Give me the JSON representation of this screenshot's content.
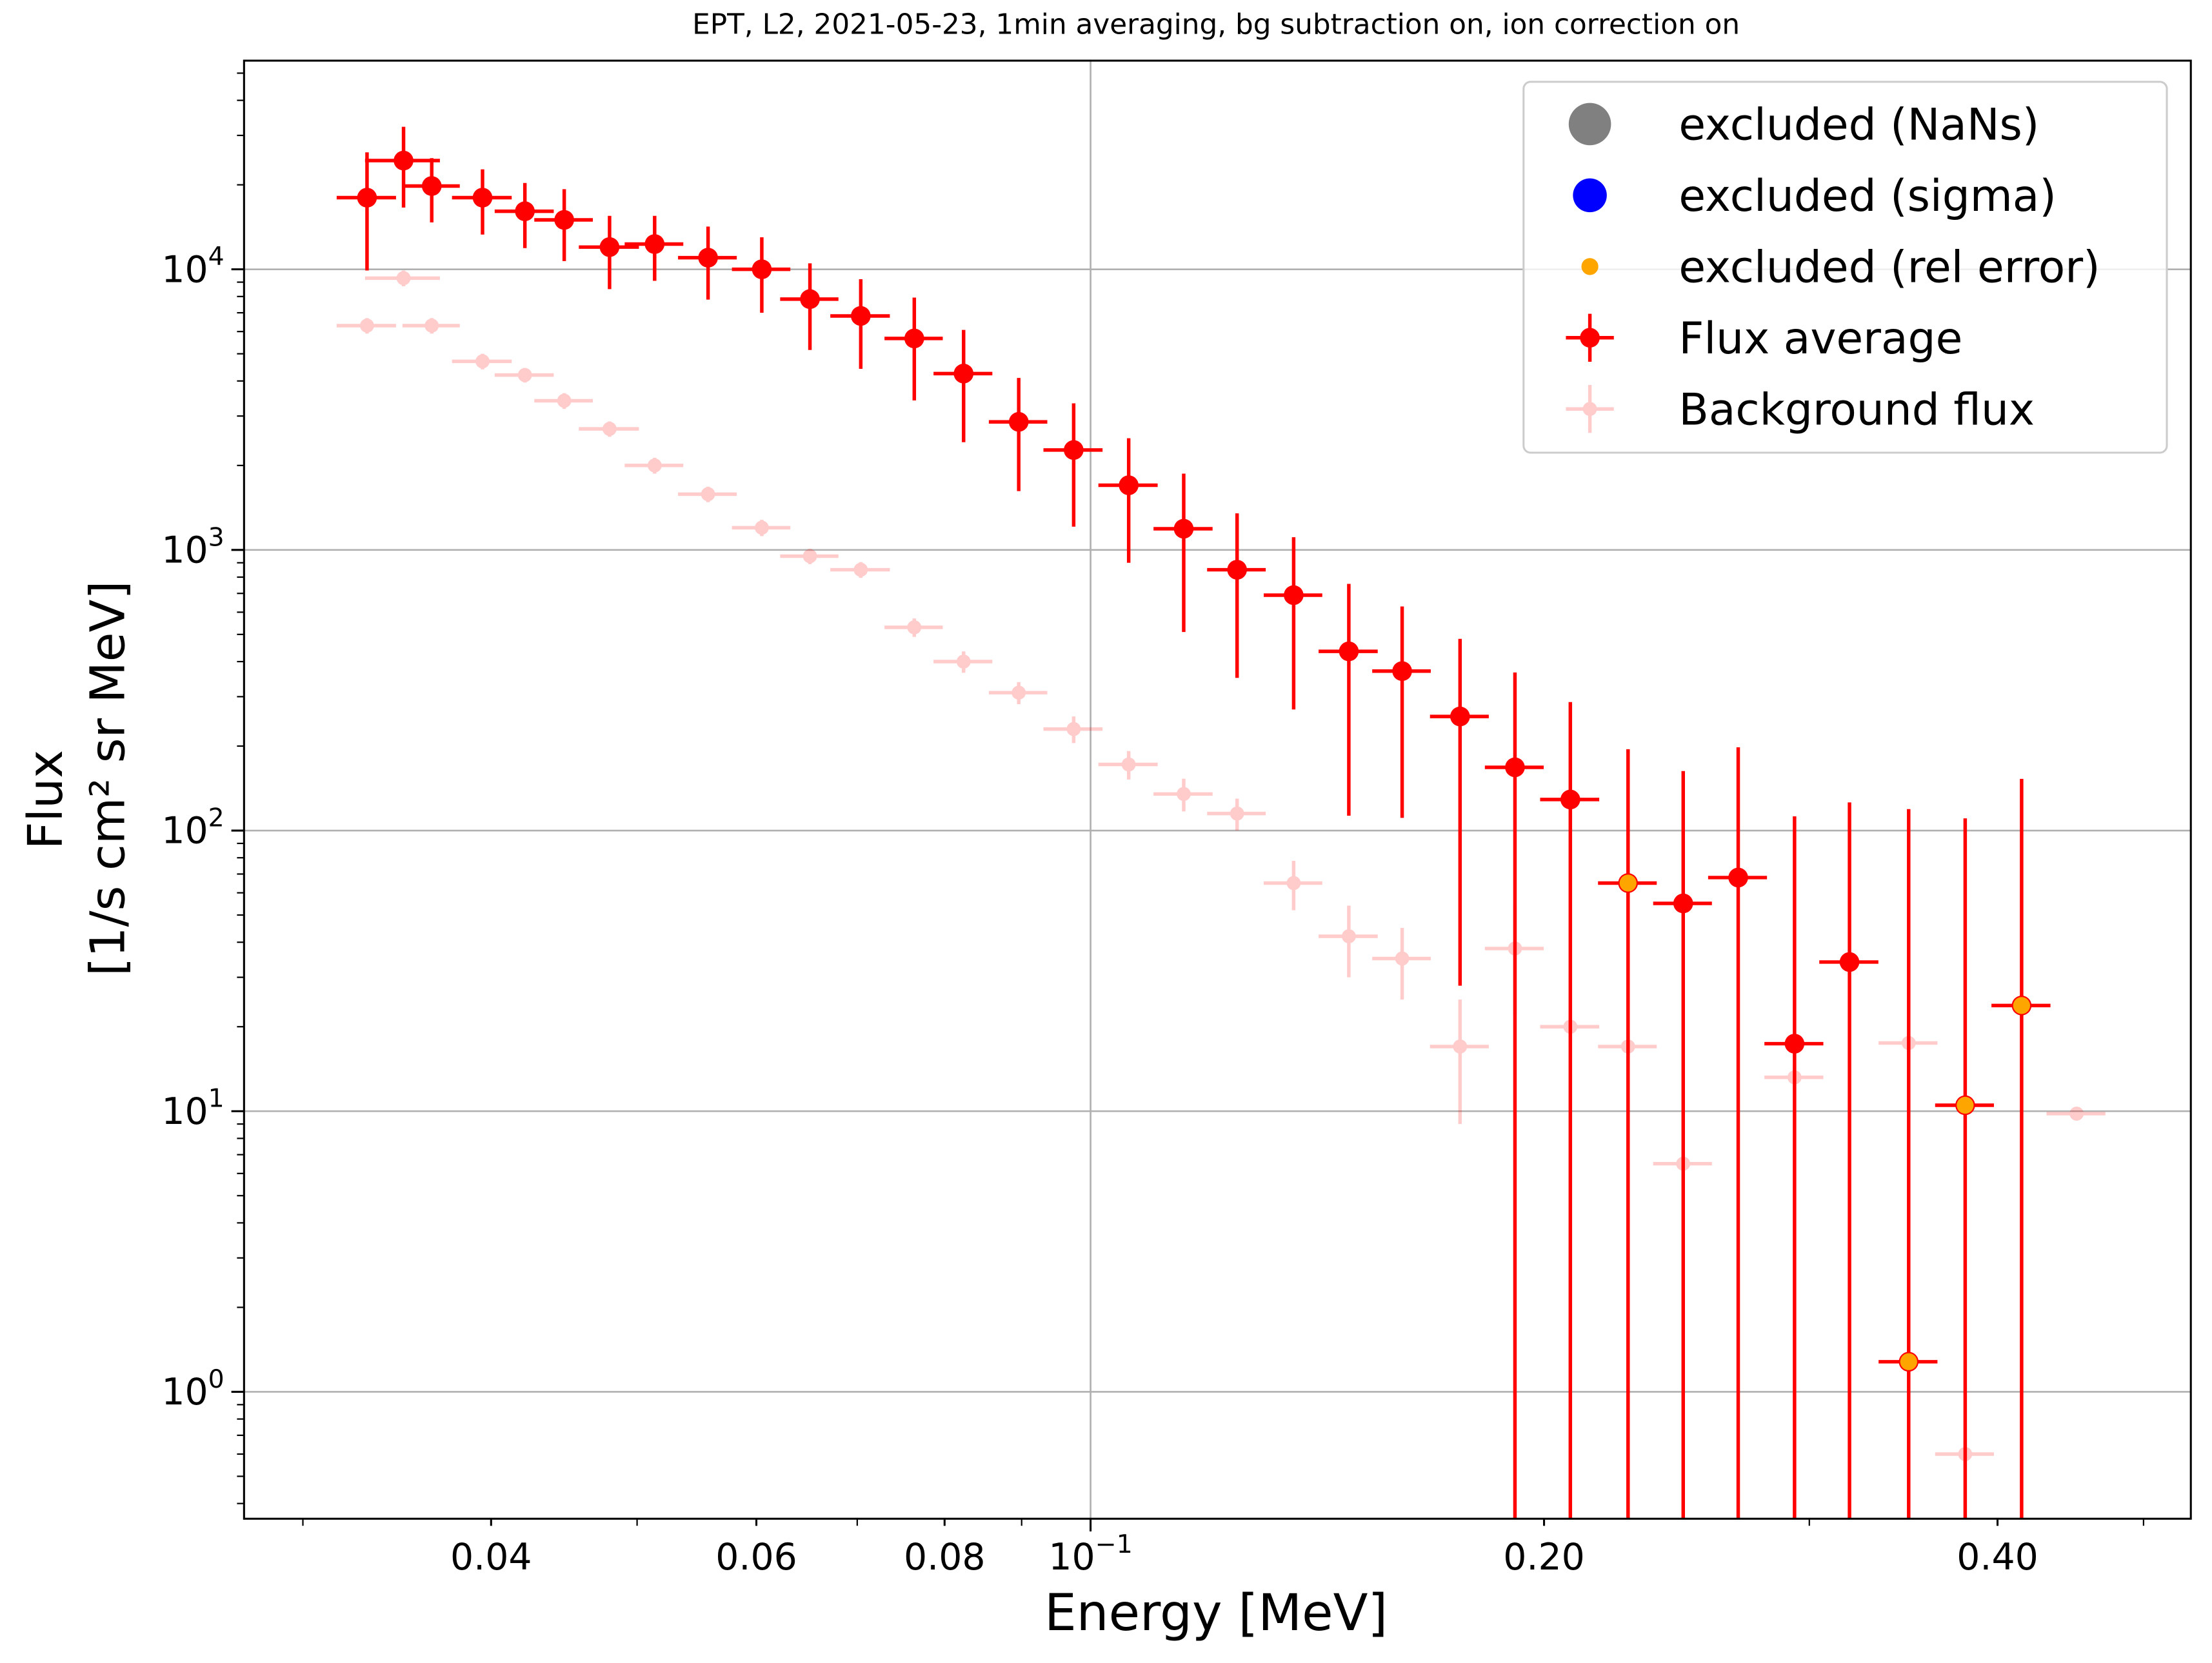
{
  "chart_data": {
    "type": "scatter",
    "title": "EPT, L2, 2021-05-23, 1min averaging, bg subtraction on, ion correction on",
    "x_label": "Energy [MeV]",
    "y_label": [
      "Flux",
      "[1/s cm² sr MeV]"
    ],
    "xscale": "log",
    "yscale": "log",
    "xlim": [
      0.02742,
      0.5375
    ],
    "ylim": [
      0.353,
      55400
    ],
    "xticks": [
      {
        "value": 0.04,
        "label": "0.04"
      },
      {
        "value": 0.06,
        "label": "0.06"
      },
      {
        "value": 0.08,
        "label": "0.08"
      },
      {
        "value": 0.1,
        "base": "10",
        "exponent": "−1"
      },
      {
        "value": 0.2,
        "label": "0.20"
      },
      {
        "value": 0.4,
        "label": "0.40"
      }
    ],
    "yticks": [
      {
        "value": 1,
        "base": "10",
        "exponent": "0"
      },
      {
        "value": 10,
        "base": "10",
        "exponent": "1"
      },
      {
        "value": 100,
        "base": "10",
        "exponent": "2"
      },
      {
        "value": 1000,
        "base": "10",
        "exponent": "3"
      },
      {
        "value": 10000,
        "base": "10",
        "exponent": "4"
      }
    ],
    "grid": true,
    "legend": "upper right",
    "series": [
      {
        "name": "excluded (NaNs)",
        "color": "#808080",
        "x": [],
        "values": []
      },
      {
        "name": "excluded (sigma)",
        "color": "#0000ff",
        "x": [],
        "values": []
      },
      {
        "name": "excluded (rel error)",
        "color": "#ffa500",
        "x": [
          0.2274,
          0.3492,
          0.3807,
          0.415
        ],
        "values": [
          65,
          1.28,
          10.5,
          23.8
        ]
      },
      {
        "name": "Flux average",
        "color": "#ff0000",
        "x": [
          0.03309,
          0.03499,
          0.03653,
          0.03948,
          0.04212,
          0.04473,
          0.04794,
          0.05136,
          0.05573,
          0.0605,
          0.06512,
          0.07038,
          0.07638,
          0.08236,
          0.0896,
          0.09745,
          0.106,
          0.1153,
          0.1251,
          0.1364,
          0.1484,
          0.161,
          0.1759,
          0.1913,
          0.2082,
          0.2274,
          0.2474,
          0.2691,
          0.2933,
          0.319,
          0.3492,
          0.3807,
          0.415
        ],
        "values": [
          18000,
          24400,
          19800,
          18000,
          16100,
          15000,
          12000,
          12300,
          11000,
          10000,
          7830,
          6820,
          5670,
          4250,
          2860,
          2270,
          1700,
          1190,
          850,
          690,
          435,
          370,
          255,
          168,
          129,
          65,
          55,
          68,
          17.4,
          34,
          1.28,
          10.5,
          23.8
        ],
        "errors": [
          8100,
          7800,
          5100,
          4700,
          4200,
          4300,
          3500,
          3200,
          3200,
          3000,
          2670,
          2400,
          2260,
          1830,
          1240,
          1060,
          800,
          680,
          500,
          420,
          322,
          259,
          227,
          198,
          158,
          130,
          108,
          130,
          95,
          92,
          118,
          100,
          129
        ],
        "xerr": [
          0.0015,
          0.002,
          0.0016,
          0.0018,
          0.0019,
          0.002,
          0.0022,
          0.0023,
          0.0025,
          0.0027,
          0.0029,
          0.0032,
          0.0034,
          0.0037,
          0.004,
          0.0044,
          0.0048,
          0.0052,
          0.0056,
          0.0061,
          0.0067,
          0.0072,
          0.0079,
          0.0086,
          0.0094,
          0.0102,
          0.0111,
          0.0121,
          0.0132,
          0.0144,
          0.0157,
          0.0171,
          0.0187
        ]
      },
      {
        "name": "Background flux",
        "color": "#ff0000",
        "opacity": 0.2,
        "x": [
          0.03309,
          0.03499,
          0.03653,
          0.03948,
          0.04212,
          0.04473,
          0.04794,
          0.05136,
          0.05573,
          0.0605,
          0.06512,
          0.07038,
          0.07638,
          0.08236,
          0.0896,
          0.09745,
          0.106,
          0.1153,
          0.1251,
          0.1364,
          0.1484,
          0.161,
          0.1759,
          0.1913,
          0.2082,
          0.2274,
          0.2474,
          0.2933,
          0.3492,
          0.3807,
          0.4514
        ],
        "values": [
          6300,
          9300,
          6300,
          4700,
          4200,
          3400,
          2700,
          2000,
          1580,
          1200,
          950,
          850,
          530,
          400,
          310,
          230,
          172,
          135,
          115,
          65,
          42,
          35,
          17,
          38,
          20,
          17,
          6.5,
          13.2,
          17.5,
          0.6,
          9.8
        ],
        "errors": [
          400,
          600,
          400,
          300,
          250,
          220,
          170,
          130,
          100,
          80,
          60,
          55,
          40,
          35,
          28,
          25,
          20,
          18,
          15,
          13,
          12,
          10,
          8,
          16,
          3,
          2,
          1,
          1.5,
          1.5,
          0.06,
          0.5
        ],
        "xerr": [
          0.0015,
          0.002,
          0.0016,
          0.0018,
          0.0019,
          0.002,
          0.0022,
          0.0023,
          0.0025,
          0.0027,
          0.0029,
          0.0032,
          0.0034,
          0.0037,
          0.004,
          0.0044,
          0.0048,
          0.0052,
          0.0056,
          0.0061,
          0.0067,
          0.0072,
          0.0079,
          0.0086,
          0.0094,
          0.0102,
          0.0111,
          0.0132,
          0.0157,
          0.0171,
          0.0203
        ]
      }
    ]
  }
}
